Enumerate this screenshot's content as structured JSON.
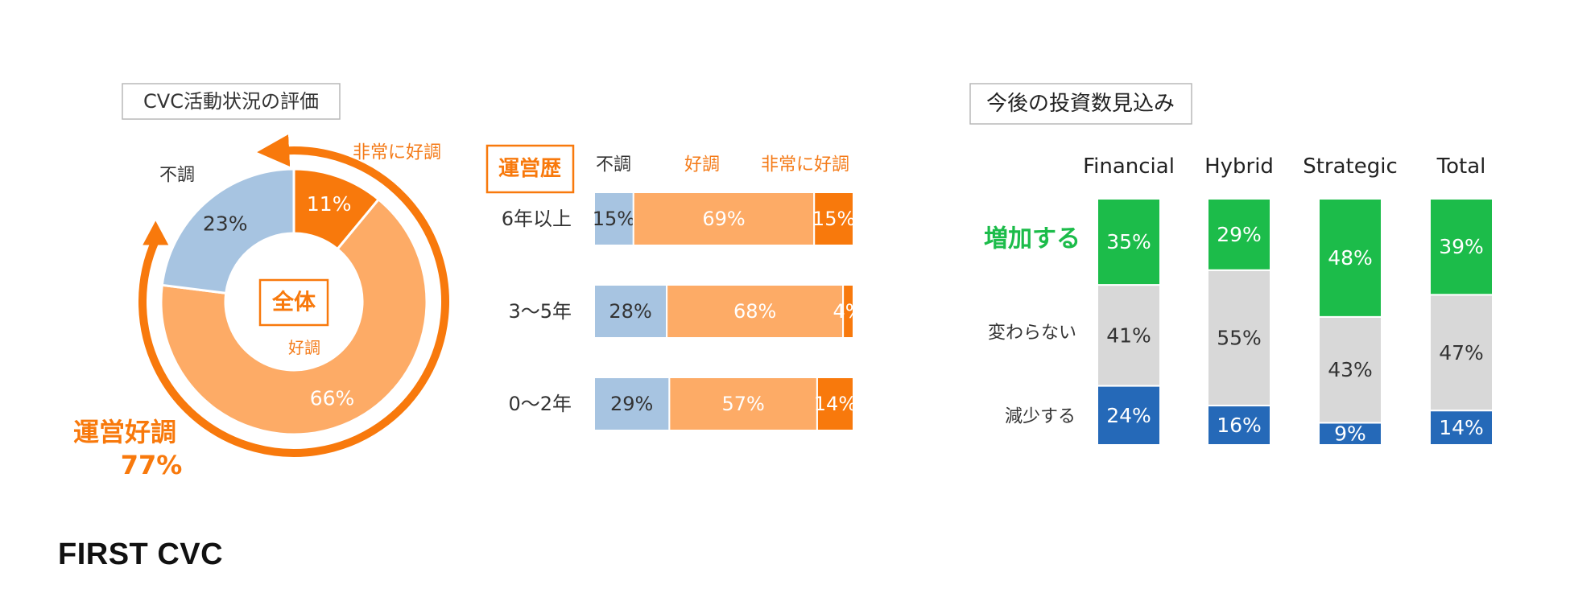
{
  "colors": {
    "bad": "#a7c4e1",
    "good": "#fdab66",
    "very_good": "#f8790c",
    "orange_text": "#f47a17",
    "increase": "#1cbc4a",
    "same": "#d8d8d8",
    "decrease": "#2569b8",
    "label_dark": "#333333"
  },
  "brand": "FIRST CVC",
  "chart_data": [
    {
      "type": "pie",
      "title": "CVC活動状況の評価",
      "center_label": "全体",
      "slices": [
        {
          "name": "非常に好調",
          "value": 11
        },
        {
          "name": "好調",
          "value": 66
        },
        {
          "name": "不調",
          "value": 23
        }
      ],
      "slice_labels": [
        "11%",
        "66%",
        "23%"
      ],
      "outer_labels": {
        "bad": "不調",
        "good": "好調",
        "very_good": "非常に好調"
      },
      "callout": {
        "label": "運営好調",
        "value": "77%"
      }
    },
    {
      "type": "bar",
      "stacked": true,
      "orientation": "horizontal",
      "header": "運営歴",
      "categories": [
        "6年以上",
        "3〜5年",
        "0〜2年"
      ],
      "series": [
        {
          "name": "不調",
          "values": [
            15,
            28,
            29
          ],
          "labels": [
            "15%",
            "28%",
            "29%"
          ]
        },
        {
          "name": "好調",
          "values": [
            69,
            68,
            57
          ],
          "labels": [
            "69%",
            "68%",
            "57%"
          ]
        },
        {
          "name": "非常に好調",
          "values": [
            15,
            4,
            14
          ],
          "labels": [
            "15%",
            "4%",
            "14%"
          ]
        }
      ]
    },
    {
      "type": "bar",
      "stacked": true,
      "orientation": "vertical",
      "title": "今後の投資数見込み",
      "categories": [
        "Financial",
        "Hybrid",
        "Strategic",
        "Total"
      ],
      "series": [
        {
          "name": "減少する",
          "values": [
            24,
            16,
            9,
            14
          ],
          "labels": [
            "24%",
            "16%",
            "9%",
            "14%"
          ]
        },
        {
          "name": "変わらない",
          "values": [
            41,
            55,
            43,
            47
          ],
          "labels": [
            "41%",
            "55%",
            "43%",
            "47%"
          ]
        },
        {
          "name": "増加する",
          "values": [
            35,
            29,
            48,
            39
          ],
          "labels": [
            "35%",
            "29%",
            "48%",
            "39%"
          ]
        }
      ]
    }
  ]
}
